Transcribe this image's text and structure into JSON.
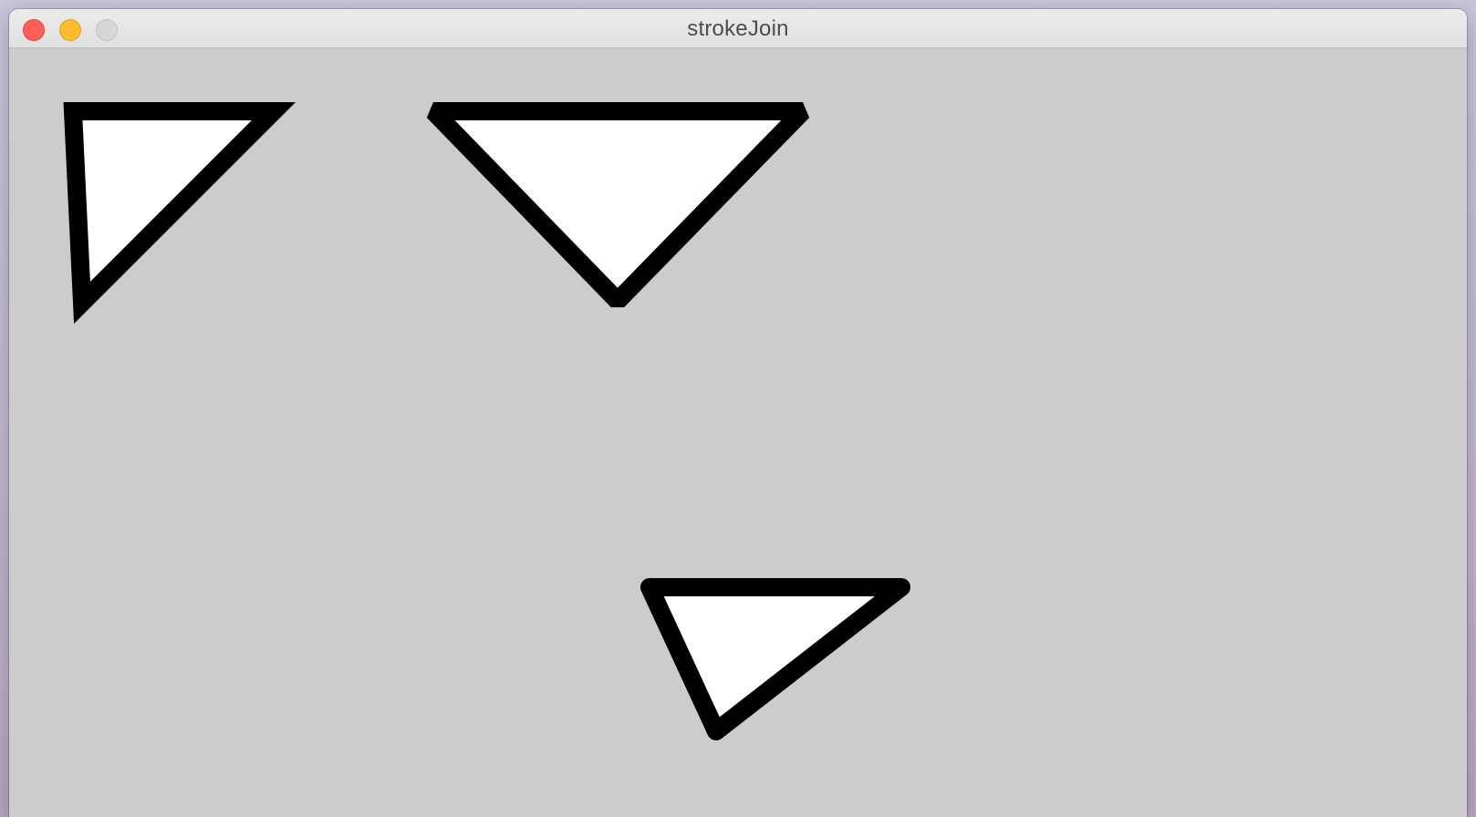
{
  "window": {
    "title": "strokeJoin",
    "controls": {
      "close_color": "#fe5f57",
      "minimize_color": "#febc2e",
      "zoom_color": "#d7d7d7"
    }
  },
  "sketch": {
    "background": "#cccccc",
    "fill": "#ffffff",
    "stroke": "#000000",
    "shapes": [
      {
        "name": "triangle-miter-join",
        "join": "miter"
      },
      {
        "name": "triangle-bevel-join",
        "join": "bevel"
      },
      {
        "name": "triangle-round-join",
        "join": "round"
      }
    ]
  }
}
